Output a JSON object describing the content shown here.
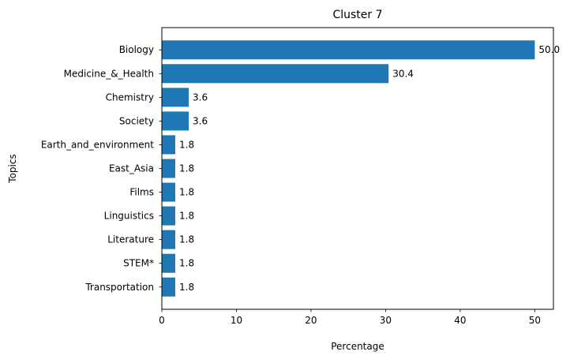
{
  "chart_data": {
    "type": "bar",
    "orientation": "horizontal",
    "title": "Cluster 7",
    "xlabel": "Percentage",
    "ylabel": "Topics",
    "categories": [
      "Biology",
      "Medicine_&_Health",
      "Chemistry",
      "Society",
      "Earth_and_environment",
      "East_Asia",
      "Films",
      "Linguistics",
      "Literature",
      "STEM*",
      "Transportation"
    ],
    "values": [
      50.0,
      30.4,
      3.6,
      3.6,
      1.8,
      1.8,
      1.8,
      1.8,
      1.8,
      1.8,
      1.8
    ],
    "value_labels": [
      "50.0",
      "30.4",
      "3.6",
      "3.6",
      "1.8",
      "1.8",
      "1.8",
      "1.8",
      "1.8",
      "1.8",
      "1.8"
    ],
    "xlim": [
      0,
      52.5
    ],
    "xticks": [
      0,
      10,
      20,
      30,
      40,
      50
    ],
    "bar_color": "#1f77b4",
    "grid": false,
    "legend": "none"
  }
}
